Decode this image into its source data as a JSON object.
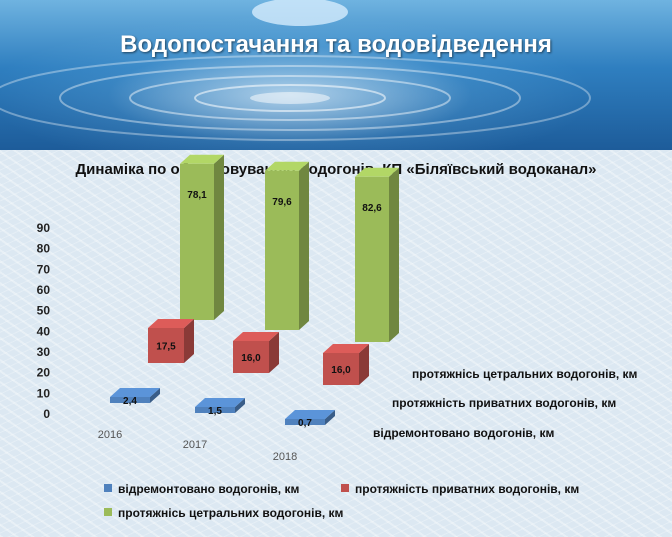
{
  "header": {
    "title": "Водопостачання та водовідведення"
  },
  "colors": {
    "series_blue": "#4f81bd",
    "series_red": "#c0504d",
    "series_green": "#9bbb59"
  },
  "chart_data": {
    "type": "bar",
    "title": "Динаміка по обслуговуванню водогонів, КП «Біляївський водоканал»",
    "categories": [
      "2016",
      "2017",
      "2018"
    ],
    "ylim": [
      0,
      90
    ],
    "yticks": [
      0,
      10,
      20,
      30,
      40,
      50,
      60,
      70,
      80,
      90
    ],
    "legend_position": "bottom",
    "series": [
      {
        "name": "відремонтовано водогонів, км",
        "values": [
          2.4,
          1.5,
          0.7
        ],
        "labels": [
          "2,4",
          "1,5",
          "0,7"
        ],
        "color": "#4f81bd"
      },
      {
        "name": "протяжність приватних водогонів, км",
        "values": [
          17.5,
          16.0,
          16.0
        ],
        "labels": [
          "17,5",
          "16,0",
          "16,0"
        ],
        "color": "#c0504d"
      },
      {
        "name": "протяжнісь цетральних водогонів, км",
        "values": [
          78.1,
          79.6,
          82.6
        ],
        "labels": [
          "78,1",
          "79,6",
          "82,6"
        ],
        "color": "#9bbb59"
      }
    ]
  }
}
